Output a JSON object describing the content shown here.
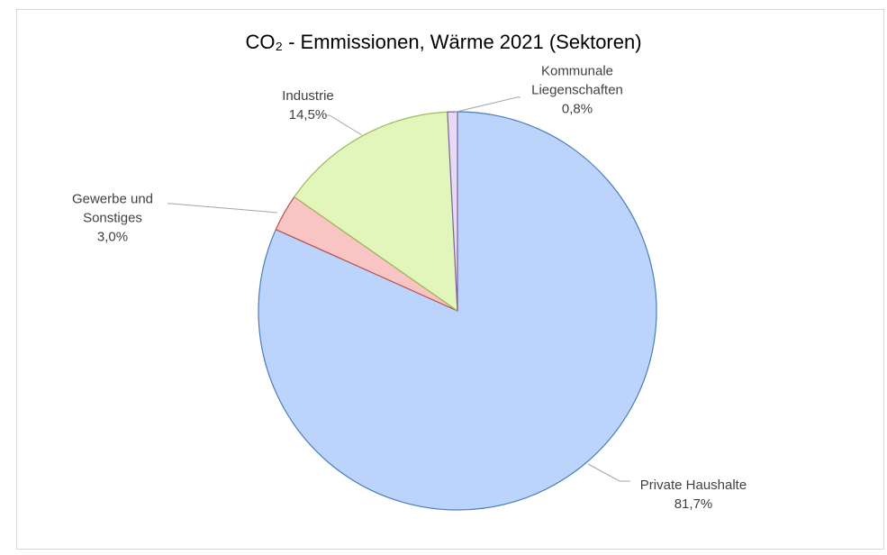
{
  "chart_data": {
    "type": "pie",
    "title": "CO₂ - Emmissionen, Wärme 2021 (Sektoren)",
    "categories": [
      "Private Haushalte",
      "Gewerbe und Sonstiges",
      "Industrie",
      "Kommunale Liegenschaften"
    ],
    "values": [
      81.7,
      3.0,
      14.5,
      0.8
    ],
    "value_labels": [
      "81,7%",
      "3,0%",
      "14,5%",
      "0,8%"
    ],
    "colors": [
      "#bcd3fb",
      "#f9c4c4",
      "#e2f5bb",
      "#e6dbf5"
    ],
    "edge_colors": [
      "#4a7ebb",
      "#c0504d",
      "#9bbb59",
      "#8064a2"
    ]
  }
}
